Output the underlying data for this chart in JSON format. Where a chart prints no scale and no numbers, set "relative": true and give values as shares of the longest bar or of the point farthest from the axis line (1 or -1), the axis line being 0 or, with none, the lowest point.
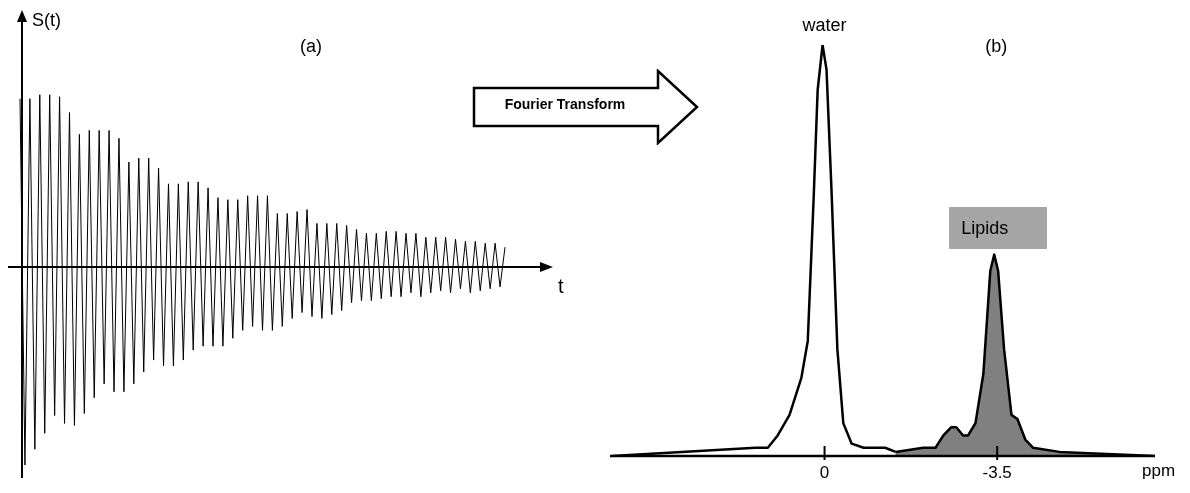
{
  "chart_data": [
    {
      "type": "line",
      "title": "(a)",
      "xlabel": "t",
      "ylabel": "S(t)",
      "relative": true,
      "color": "#000000",
      "annotations": [
        "Fourier Transform"
      ],
      "categories": [
        null,
        null,
        null,
        null,
        null,
        null,
        null,
        null,
        null,
        null,
        null,
        null,
        null,
        null,
        null,
        null,
        null,
        null,
        null,
        null,
        null,
        null,
        null,
        null,
        null,
        null,
        null,
        null,
        null,
        null,
        null,
        null,
        null,
        null,
        null,
        null,
        null,
        null,
        null,
        null,
        null,
        null,
        null,
        null,
        null,
        null,
        null,
        null,
        null,
        null,
        null,
        null,
        null,
        null,
        null,
        null,
        null,
        null,
        null,
        null,
        null,
        null,
        null,
        null,
        null,
        null,
        null,
        null,
        null,
        null,
        null,
        null,
        null,
        null,
        null,
        null,
        null,
        null,
        null,
        null,
        null,
        null,
        null,
        null,
        null,
        null,
        null,
        null,
        null,
        null,
        null,
        null,
        null,
        null,
        null,
        null,
        null,
        null,
        null
      ],
      "values": [
        0.85,
        -1,
        0.85,
        -0.92,
        0.87,
        -0.84,
        0.87,
        -0.75,
        0.86,
        -0.79,
        0.78,
        -0.8,
        0.67,
        -0.74,
        0.69,
        -0.66,
        0.69,
        -0.59,
        0.69,
        -0.63,
        0.65,
        -0.63,
        0.53,
        -0.59,
        0.55,
        -0.53,
        0.55,
        -0.47,
        0.5,
        -0.5,
        0.42,
        -0.5,
        0.42,
        -0.47,
        0.43,
        -0.42,
        0.43,
        -0.4,
        0.4,
        -0.4,
        0.35,
        -0.4,
        0.34,
        -0.36,
        0.34,
        -0.32,
        0.36,
        -0.3,
        0.36,
        -0.32,
        0.36,
        -0.32,
        0.27,
        -0.3,
        0.27,
        -0.26,
        0.28,
        -0.23,
        0.29,
        -0.25,
        0.22,
        -0.26,
        0.22,
        -0.24,
        0.22,
        -0.22,
        0.21,
        -0.18,
        0.19,
        -0.17,
        0.17,
        -0.17,
        0.17,
        -0.16,
        0.18,
        -0.15,
        0.18,
        -0.15,
        0.17,
        -0.13,
        0.17,
        -0.15,
        0.15,
        -0.13,
        0.15,
        -0.12,
        0.15,
        -0.13,
        0.14,
        -0.11,
        0.13,
        -0.13,
        0.13,
        -0.12,
        0.12,
        -0.11,
        0.12,
        -0.1,
        0.1
      ]
    },
    {
      "type": "line",
      "title": "(b)",
      "xlabel": "ppm",
      "relative": true,
      "xlim": [
        4.35,
        -6.7
      ],
      "xticks": [
        0,
        -3.5
      ],
      "annotations": [
        {
          "text": "water",
          "x": 0,
          "y": 1
        },
        {
          "text": "Lipids",
          "x": -3.5,
          "y": 0.49
        }
      ],
      "series": [
        {
          "type": "line",
          "color": "#000000",
          "x": [
            4.31,
            1.4,
            1.15,
            0.95,
            0.71,
            0.47,
            0.34,
            0.22,
            0.14,
            0.04,
            -0.04,
            -0.14,
            -0.26,
            -0.38,
            -0.55,
            -0.79,
            -1.23,
            -1.44
          ],
          "values": [
            0,
            0.02,
            0.02,
            0.05,
            0.1,
            0.19,
            0.28,
            0.63,
            0.89,
            1,
            0.94,
            0.65,
            0.26,
            0.08,
            0.03,
            0.02,
            0.02,
            0.01
          ]
        },
        {
          "type": "area",
          "color": "#808080",
          "x": [
            -1.44,
            -2.0,
            -2.25,
            -2.41,
            -2.57,
            -2.67,
            -2.81,
            -2.91,
            -3.06,
            -3.22,
            -3.36,
            -3.44,
            -3.52,
            -3.64,
            -3.79,
            -3.91,
            -4.07,
            -4.23,
            -4.76,
            -6.7
          ],
          "values": [
            0.01,
            0.02,
            0.02,
            0.05,
            0.07,
            0.07,
            0.05,
            0.05,
            0.08,
            0.2,
            0.45,
            0.49,
            0.45,
            0.26,
            0.1,
            0.09,
            0.04,
            0.02,
            0.01,
            0
          ]
        }
      ]
    }
  ]
}
